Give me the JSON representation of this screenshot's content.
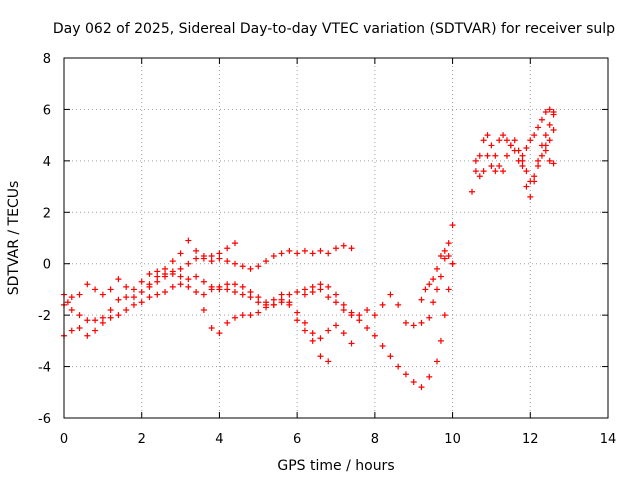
{
  "chart_data": {
    "type": "scatter",
    "title": "Day 062 of 2025, Sidereal Day-to-day VTEC variation (SDTVAR) for receiver sulp",
    "xlabel": "GPS time / hours",
    "ylabel": "SDTVAR / TECUs",
    "xlim": [
      0,
      14
    ],
    "ylim": [
      -6,
      8
    ],
    "xticks": [
      0,
      2,
      4,
      6,
      8,
      10,
      12,
      14
    ],
    "yticks": [
      -6,
      -4,
      -2,
      0,
      2,
      4,
      6,
      8
    ],
    "grid": true,
    "marker": "plus",
    "color": "#ff0000",
    "series": [
      {
        "values": [
          [
            0.0,
            -2.8
          ],
          [
            0.2,
            -2.6
          ],
          [
            0.4,
            -2.5
          ],
          [
            0.6,
            -2.8
          ],
          [
            0.8,
            -2.6
          ],
          [
            1.0,
            -2.3
          ],
          [
            1.2,
            -2.1
          ],
          [
            1.4,
            -2.0
          ],
          [
            1.6,
            -1.8
          ],
          [
            1.8,
            -1.6
          ],
          [
            2.0,
            -1.5
          ],
          [
            2.2,
            -1.3
          ],
          [
            2.4,
            -1.2
          ],
          [
            2.6,
            -1.1
          ],
          [
            2.8,
            -0.9
          ],
          [
            3.0,
            -0.8
          ],
          [
            3.2,
            -0.6
          ],
          [
            3.4,
            -0.5
          ],
          [
            3.6,
            -0.7
          ],
          [
            3.8,
            -0.9
          ],
          [
            4.0,
            -1.0
          ],
          [
            4.2,
            -1.0
          ],
          [
            4.4,
            -1.1
          ],
          [
            4.6,
            -1.2
          ],
          [
            4.8,
            -1.3
          ],
          [
            5.0,
            -1.5
          ],
          [
            5.2,
            -1.6
          ],
          [
            5.4,
            -1.4
          ],
          [
            5.6,
            -1.2
          ],
          [
            5.8,
            -1.5
          ],
          [
            6.0,
            -1.9
          ],
          [
            6.2,
            -2.3
          ],
          [
            6.4,
            -2.7
          ],
          [
            6.6,
            -2.9
          ],
          [
            6.8,
            -2.6
          ],
          [
            7.0,
            -2.4
          ],
          [
            7.2,
            -2.7
          ],
          [
            7.4,
            -3.1
          ]
        ]
      },
      {
        "values": [
          [
            0.0,
            -1.2
          ],
          [
            0.1,
            -1.5
          ],
          [
            0.2,
            -1.8
          ],
          [
            0.4,
            -2.0
          ],
          [
            0.6,
            -2.2
          ],
          [
            0.8,
            -2.2
          ],
          [
            1.0,
            -2.1
          ],
          [
            1.2,
            -1.8
          ],
          [
            1.4,
            -1.4
          ],
          [
            1.6,
            -1.3
          ],
          [
            1.8,
            -1.3
          ],
          [
            2.0,
            -1.1
          ],
          [
            2.2,
            -0.9
          ],
          [
            2.4,
            -0.7
          ],
          [
            2.6,
            -0.5
          ],
          [
            2.8,
            -0.4
          ],
          [
            3.0,
            -0.2
          ],
          [
            3.2,
            0.0
          ],
          [
            3.4,
            0.2
          ],
          [
            3.6,
            0.3
          ],
          [
            3.8,
            0.3
          ],
          [
            4.0,
            0.2
          ],
          [
            4.2,
            0.1
          ],
          [
            4.4,
            0.0
          ],
          [
            4.6,
            -0.1
          ],
          [
            4.8,
            -0.2
          ],
          [
            5.0,
            -0.1
          ],
          [
            5.2,
            0.1
          ],
          [
            5.4,
            0.3
          ],
          [
            5.6,
            0.4
          ],
          [
            5.8,
            0.5
          ],
          [
            6.0,
            0.4
          ],
          [
            6.2,
            0.5
          ],
          [
            6.4,
            0.4
          ],
          [
            6.6,
            0.5
          ],
          [
            6.8,
            0.4
          ],
          [
            7.0,
            0.6
          ],
          [
            7.2,
            0.7
          ],
          [
            7.4,
            0.6
          ]
        ]
      },
      {
        "values": [
          [
            0.0,
            -1.6
          ],
          [
            0.2,
            -1.3
          ],
          [
            0.4,
            -1.2
          ],
          [
            0.6,
            -0.8
          ],
          [
            0.8,
            -1.0
          ],
          [
            1.0,
            -1.2
          ],
          [
            1.2,
            -1.0
          ],
          [
            1.4,
            -0.6
          ],
          [
            1.6,
            -0.9
          ],
          [
            1.8,
            -1.0
          ],
          [
            2.0,
            -0.7
          ],
          [
            2.2,
            -0.4
          ],
          [
            2.4,
            -0.3
          ],
          [
            2.6,
            -0.2
          ],
          [
            2.8,
            0.1
          ],
          [
            3.0,
            0.4
          ],
          [
            3.2,
            0.9
          ],
          [
            3.4,
            0.5
          ],
          [
            3.6,
            0.2
          ],
          [
            3.8,
            0.1
          ],
          [
            4.0,
            0.4
          ],
          [
            4.2,
            0.6
          ],
          [
            4.4,
            0.8
          ]
        ]
      },
      {
        "values": [
          [
            2.2,
            -0.8
          ],
          [
            2.4,
            -0.5
          ],
          [
            2.6,
            -0.4
          ],
          [
            2.8,
            -0.3
          ],
          [
            3.0,
            -0.5
          ],
          [
            3.2,
            -0.9
          ],
          [
            3.4,
            -1.1
          ],
          [
            3.6,
            -1.2
          ],
          [
            3.8,
            -1.0
          ],
          [
            4.0,
            -0.9
          ],
          [
            4.2,
            -0.8
          ],
          [
            4.4,
            -0.8
          ],
          [
            4.6,
            -0.9
          ],
          [
            4.8,
            -1.1
          ],
          [
            5.0,
            -1.3
          ],
          [
            5.2,
            -1.5
          ],
          [
            5.4,
            -1.6
          ],
          [
            5.6,
            -1.4
          ],
          [
            5.8,
            -1.2
          ],
          [
            6.0,
            -1.1
          ],
          [
            6.2,
            -1.0
          ],
          [
            6.4,
            -0.9
          ],
          [
            6.6,
            -1.0
          ],
          [
            6.8,
            -1.3
          ],
          [
            7.0,
            -1.5
          ],
          [
            7.2,
            -1.8
          ],
          [
            7.4,
            -2.0
          ],
          [
            7.6,
            -2.2
          ],
          [
            7.8,
            -2.5
          ],
          [
            8.0,
            -2.8
          ],
          [
            8.2,
            -3.2
          ],
          [
            8.4,
            -3.6
          ],
          [
            8.6,
            -4.0
          ],
          [
            8.8,
            -4.3
          ],
          [
            9.0,
            -4.6
          ],
          [
            9.2,
            -4.8
          ],
          [
            9.4,
            -4.4
          ],
          [
            9.6,
            -3.8
          ],
          [
            9.7,
            -3.0
          ],
          [
            9.8,
            -2.0
          ],
          [
            9.9,
            -1.0
          ],
          [
            10.0,
            0.0
          ]
        ]
      },
      {
        "values": [
          [
            3.6,
            -1.8
          ],
          [
            3.8,
            -2.5
          ],
          [
            4.0,
            -2.7
          ],
          [
            4.2,
            -2.3
          ],
          [
            4.4,
            -2.1
          ],
          [
            4.6,
            -2.0
          ],
          [
            4.8,
            -2.0
          ],
          [
            5.0,
            -1.9
          ],
          [
            5.2,
            -1.7
          ],
          [
            5.4,
            -1.6
          ],
          [
            5.6,
            -1.5
          ],
          [
            5.8,
            -1.6
          ],
          [
            6.0,
            -2.2
          ],
          [
            6.2,
            -2.6
          ],
          [
            6.4,
            -3.0
          ],
          [
            6.6,
            -3.6
          ],
          [
            6.8,
            -3.8
          ]
        ]
      },
      {
        "values": [
          [
            6.2,
            -1.2
          ],
          [
            6.4,
            -1.1
          ],
          [
            6.6,
            -0.8
          ],
          [
            6.8,
            -0.9
          ],
          [
            7.0,
            -1.2
          ],
          [
            7.2,
            -1.6
          ],
          [
            7.4,
            -1.9
          ],
          [
            7.6,
            -2.0
          ],
          [
            7.8,
            -1.8
          ],
          [
            8.0,
            -2.0
          ],
          [
            8.2,
            -1.6
          ],
          [
            8.4,
            -1.2
          ],
          [
            8.6,
            -1.6
          ],
          [
            8.8,
            -2.3
          ],
          [
            9.0,
            -2.4
          ],
          [
            9.2,
            -2.3
          ],
          [
            9.4,
            -2.1
          ],
          [
            9.5,
            -1.5
          ],
          [
            9.6,
            -1.0
          ],
          [
            9.7,
            -0.5
          ],
          [
            9.8,
            0.2
          ],
          [
            9.9,
            0.8
          ],
          [
            10.0,
            1.5
          ]
        ]
      },
      {
        "values": [
          [
            9.2,
            -1.4
          ],
          [
            9.3,
            -1.0
          ],
          [
            9.4,
            -0.8
          ],
          [
            9.5,
            -0.6
          ],
          [
            9.6,
            -0.2
          ],
          [
            9.7,
            0.3
          ],
          [
            9.8,
            0.5
          ],
          [
            9.9,
            0.3
          ],
          [
            10.0,
            0.0
          ]
        ]
      },
      {
        "values": [
          [
            10.5,
            2.8
          ],
          [
            10.6,
            3.6
          ],
          [
            10.7,
            4.2
          ],
          [
            10.8,
            4.8
          ],
          [
            10.9,
            5.0
          ],
          [
            11.0,
            4.6
          ],
          [
            11.1,
            4.2
          ],
          [
            11.2,
            4.8
          ],
          [
            11.3,
            5.0
          ],
          [
            11.4,
            4.8
          ],
          [
            11.5,
            4.6
          ],
          [
            11.6,
            4.8
          ],
          [
            11.7,
            4.4
          ],
          [
            11.8,
            4.0
          ],
          [
            11.9,
            3.6
          ],
          [
            12.0,
            3.2
          ],
          [
            12.1,
            3.4
          ],
          [
            12.2,
            4.0
          ],
          [
            12.3,
            4.6
          ],
          [
            12.4,
            5.0
          ],
          [
            12.5,
            5.4
          ],
          [
            12.6,
            5.8
          ]
        ]
      },
      {
        "values": [
          [
            10.6,
            4.0
          ],
          [
            10.7,
            3.4
          ],
          [
            10.8,
            3.6
          ],
          [
            10.9,
            4.2
          ],
          [
            11.0,
            3.8
          ],
          [
            11.1,
            3.6
          ],
          [
            11.2,
            3.8
          ],
          [
            11.3,
            3.6
          ],
          [
            11.4,
            4.2
          ],
          [
            11.5,
            4.6
          ],
          [
            11.6,
            4.4
          ],
          [
            11.7,
            4.0
          ],
          [
            11.8,
            3.8
          ],
          [
            11.9,
            3.0
          ],
          [
            12.0,
            2.6
          ],
          [
            12.1,
            3.2
          ],
          [
            12.2,
            3.8
          ],
          [
            12.3,
            4.2
          ],
          [
            12.4,
            4.4
          ],
          [
            12.5,
            4.0
          ],
          [
            12.6,
            3.9
          ]
        ]
      },
      {
        "values": [
          [
            11.8,
            4.2
          ],
          [
            11.9,
            4.5
          ],
          [
            12.0,
            4.8
          ],
          [
            12.1,
            5.0
          ],
          [
            12.2,
            5.3
          ],
          [
            12.3,
            5.6
          ],
          [
            12.4,
            5.9
          ],
          [
            12.5,
            6.0
          ],
          [
            12.6,
            5.9
          ],
          [
            12.6,
            5.2
          ],
          [
            12.5,
            4.8
          ],
          [
            12.4,
            4.6
          ]
        ]
      }
    ]
  }
}
